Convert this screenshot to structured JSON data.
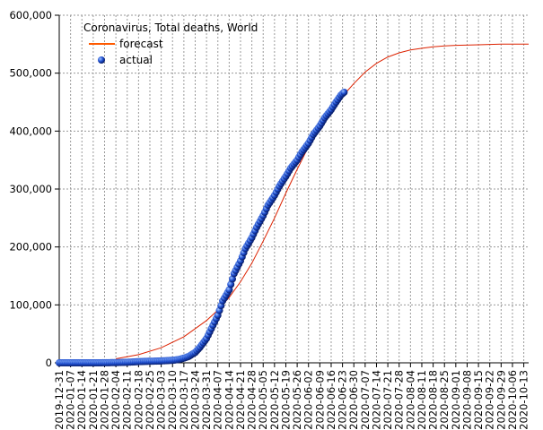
{
  "chart_data": {
    "type": "line",
    "title": "Coronavirus, Total deaths, World",
    "xlabel": "",
    "ylabel": "",
    "ylim": [
      0,
      600000
    ],
    "y_ticks": [
      0,
      100000,
      200000,
      300000,
      400000,
      500000,
      600000
    ],
    "y_tick_labels": [
      "0",
      "100,000",
      "200,000",
      "300,000",
      "400,000",
      "500,000",
      "600,000"
    ],
    "x_range": [
      "2019-12-31",
      "2020-10-16"
    ],
    "x_tick_labels": [
      "2019-12-31",
      "2020-01-07",
      "2020-01-14",
      "2020-01-21",
      "2020-01-28",
      "2020-02-04",
      "2020-02-11",
      "2020-02-18",
      "2020-02-25",
      "2020-03-03",
      "2020-03-10",
      "2020-03-17",
      "2020-03-24",
      "2020-03-31",
      "2020-04-07",
      "2020-04-14",
      "2020-04-21",
      "2020-04-28",
      "2020-05-05",
      "2020-05-12",
      "2020-05-19",
      "2020-05-26",
      "2020-06-02",
      "2020-06-09",
      "2020-06-16",
      "2020-06-23",
      "2020-06-30",
      "2020-07-07",
      "2020-07-14",
      "2020-07-21",
      "2020-07-28",
      "2020-08-04",
      "2020-08-11",
      "2020-08-18",
      "2020-08-25",
      "2020-09-01",
      "2020-09-08",
      "2020-09-15",
      "2020-09-22",
      "2020-09-29",
      "2020-10-06",
      "2020-10-13"
    ],
    "grid": true,
    "legend_position": "top-left",
    "series": [
      {
        "name": "forecast",
        "style": "line",
        "color": "#dd2200",
        "legend_color": "#ff5a00",
        "x": [
          "2020-02-04",
          "2020-02-18",
          "2020-03-03",
          "2020-03-17",
          "2020-03-31",
          "2020-04-07",
          "2020-04-14",
          "2020-04-21",
          "2020-04-28",
          "2020-05-05",
          "2020-05-12",
          "2020-05-19",
          "2020-05-26",
          "2020-06-02",
          "2020-06-09",
          "2020-06-16",
          "2020-06-23",
          "2020-06-30",
          "2020-07-07",
          "2020-07-14",
          "2020-07-21",
          "2020-07-28",
          "2020-08-04",
          "2020-08-11",
          "2020-08-18",
          "2020-08-25",
          "2020-09-01",
          "2020-09-15",
          "2020-09-29",
          "2020-10-16"
        ],
        "y": [
          7000,
          14000,
          26000,
          45000,
          73000,
          91000,
          113000,
          140000,
          172000,
          210000,
          250000,
          293000,
          334000,
          373000,
          406000,
          435000,
          460000,
          482000,
          502000,
          517000,
          528000,
          535000,
          540000,
          543000,
          545500,
          547000,
          548000,
          549000,
          550000,
          550000
        ]
      },
      {
        "name": "actual",
        "style": "markers",
        "color": "#1f4fd0",
        "x": [
          "2019-12-31",
          "2020-01-07",
          "2020-01-14",
          "2020-01-21",
          "2020-01-28",
          "2020-02-04",
          "2020-02-11",
          "2020-02-18",
          "2020-02-25",
          "2020-03-03",
          "2020-03-10",
          "2020-03-14",
          "2020-03-17",
          "2020-03-20",
          "2020-03-24",
          "2020-03-27",
          "2020-03-31",
          "2020-04-03",
          "2020-04-07",
          "2020-04-10",
          "2020-04-14",
          "2020-04-17",
          "2020-04-21",
          "2020-04-24",
          "2020-04-28",
          "2020-05-01",
          "2020-05-05",
          "2020-05-08",
          "2020-05-12",
          "2020-05-15",
          "2020-05-19",
          "2020-05-22",
          "2020-05-26",
          "2020-05-29",
          "2020-06-02",
          "2020-06-05",
          "2020-06-09",
          "2020-06-12",
          "2020-06-16",
          "2020-06-19",
          "2020-06-22",
          "2020-06-24"
        ],
        "y": [
          0,
          0,
          0,
          0,
          100,
          400,
          1000,
          2000,
          2700,
          3200,
          4300,
          5800,
          8000,
          11000,
          18000,
          27000,
          42000,
          59000,
          82000,
          107000,
          126000,
          154000,
          176000,
          197000,
          216000,
          234000,
          254000,
          272000,
          289000,
          305000,
          322000,
          336000,
          350000,
          364000,
          379000,
          394000,
          409000,
          423000,
          437000,
          450000,
          462000,
          467000
        ]
      }
    ]
  }
}
